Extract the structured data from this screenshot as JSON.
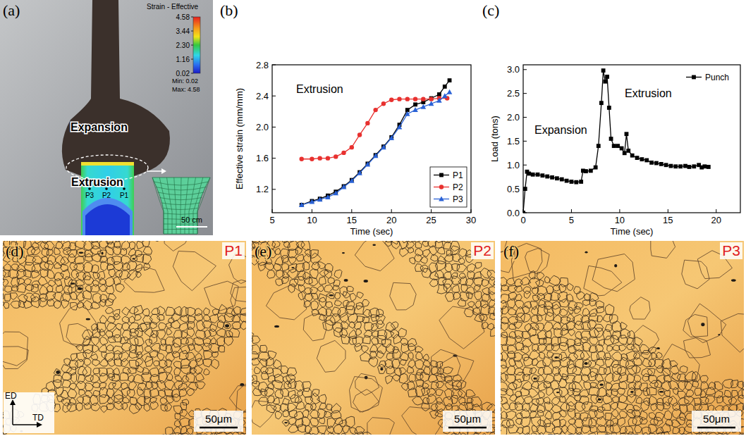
{
  "chart_data": [
    {
      "panel_label": "(b)",
      "type": "line",
      "annotations": [
        "Extrusion"
      ],
      "x_label": "Time (sec)",
      "y_label": "Effective strain (mm/mm)",
      "xlim": [
        5,
        30
      ],
      "xticks": [
        5,
        10,
        15,
        20,
        25,
        30
      ],
      "ylim": [
        0.9,
        2.8
      ],
      "yticks": [
        1.2,
        1.6,
        {
          "value": 2,
          "label": "2.0"
        },
        2.4,
        2.8
      ],
      "legend": "lower right",
      "grid": false,
      "series": [
        {
          "name": "P1",
          "color": "#000000",
          "marker": "square",
          "x": [
            8.7,
            10,
            11,
            12,
            13,
            14,
            15,
            16,
            17,
            18,
            19,
            20,
            21,
            22,
            23,
            24,
            25,
            26,
            26.7,
            27.3
          ],
          "values": [
            1.0,
            1.05,
            1.08,
            1.12,
            1.17,
            1.24,
            1.32,
            1.42,
            1.53,
            1.64,
            1.75,
            1.87,
            2.03,
            2.22,
            2.29,
            2.32,
            2.37,
            2.42,
            2.52,
            2.6
          ]
        },
        {
          "name": "P2",
          "color": "#e8312f",
          "marker": "circle",
          "x": [
            8.7,
            10,
            11,
            12,
            13,
            14,
            15,
            16,
            17,
            18,
            19,
            20,
            21,
            22,
            23,
            24,
            25,
            26,
            27
          ],
          "values": [
            1.59,
            1.59,
            1.6,
            1.6,
            1.62,
            1.67,
            1.74,
            1.9,
            2.05,
            2.22,
            2.3,
            2.35,
            2.36,
            2.36,
            2.36,
            2.36,
            2.36,
            2.37,
            2.37
          ]
        },
        {
          "name": "P3",
          "color": "#2a62d6",
          "marker": "triangle",
          "x": [
            8.7,
            10,
            11,
            12,
            13,
            14,
            15,
            16,
            17,
            18,
            19,
            20,
            21,
            22,
            23,
            24,
            25,
            26,
            26.7,
            27.3
          ],
          "values": [
            1.0,
            1.04,
            1.07,
            1.1,
            1.15,
            1.23,
            1.31,
            1.41,
            1.52,
            1.63,
            1.74,
            1.86,
            2.0,
            2.17,
            2.22,
            2.26,
            2.3,
            2.34,
            2.4,
            2.45
          ]
        }
      ]
    },
    {
      "panel_label": "(c)",
      "type": "line",
      "annotations": [
        "Expansion",
        "Extrusion"
      ],
      "x_label": "Time (sec)",
      "y_label": "Load (tons)",
      "xlim": [
        0,
        22.5
      ],
      "xticks": [
        0,
        5,
        10,
        15,
        20
      ],
      "ylim": [
        0,
        3.1
      ],
      "yticks": [
        {
          "value": 0,
          "label": "0.0"
        },
        0.5,
        {
          "value": 1,
          "label": "1.0"
        },
        1.5,
        {
          "value": 2,
          "label": "2.0"
        },
        2.5,
        {
          "value": 3,
          "label": "3.0"
        }
      ],
      "legend": "upper right",
      "grid": false,
      "series": [
        {
          "name": "Punch",
          "color": "#000000",
          "marker": "square",
          "x": [
            0,
            0.2,
            0.4,
            0.6,
            1,
            1.5,
            2,
            2.5,
            3,
            3.5,
            4,
            4.5,
            5,
            5.5,
            6,
            6.2,
            6.5,
            7,
            7.5,
            7.8,
            8.1,
            8.3,
            8.5,
            8.7,
            8.9,
            9.1,
            9.4,
            9.8,
            10.2,
            10.5,
            10.7,
            10.9,
            11.3,
            11.8,
            12.3,
            12.8,
            13.3,
            13.8,
            14.3,
            14.8,
            15.3,
            15.8,
            16.3,
            16.8,
            17.2,
            17.7,
            18.2,
            18.5,
            18.8,
            19.2
          ],
          "values": [
            0,
            0.5,
            0.86,
            0.82,
            0.8,
            0.8,
            0.78,
            0.76,
            0.74,
            0.72,
            0.7,
            0.67,
            0.65,
            0.64,
            0.65,
            0.88,
            0.87,
            0.88,
            0.95,
            1.4,
            2.3,
            2.98,
            2.75,
            2.85,
            2.2,
            1.55,
            1.4,
            1.4,
            1.35,
            1.25,
            1.65,
            1.3,
            1.2,
            1.15,
            1.12,
            1.1,
            1.05,
            1.04,
            1.02,
            1.0,
            0.98,
            0.97,
            0.97,
            0.98,
            0.96,
            0.97,
            1.0,
            0.95,
            0.97,
            0.96
          ]
        }
      ]
    }
  ],
  "figure": {
    "a": {
      "panel_label": "(a)",
      "expansion": "Expansion",
      "extrusion": "Extrusion",
      "points": [
        "P3",
        "P2",
        "P1"
      ],
      "scale_bar": "50 cm",
      "colorbar": {
        "title": "Strain - Effective",
        "range": [
          0.02,
          4.58
        ],
        "ticks": [
          4.58,
          3.44,
          {
            "value": 2.3,
            "label": "2.30"
          },
          1.16,
          0.02
        ],
        "min_label": "Min: 0.02",
        "max_label": "Max: 4.58"
      }
    },
    "micrographs": [
      {
        "panel_label": "(d)",
        "point": "P1",
        "scale_bar": "50μm"
      },
      {
        "panel_label": "(e)",
        "point": "P2",
        "scale_bar": "50μm"
      },
      {
        "panel_label": "(f)",
        "point": "P3",
        "scale_bar": "50μm"
      }
    ],
    "axes": {
      "ed": "ED",
      "td": "TD"
    }
  }
}
